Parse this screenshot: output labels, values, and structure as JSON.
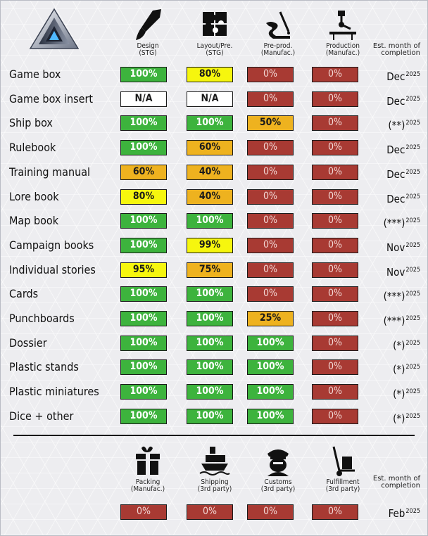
{
  "header": {
    "columns": [
      {
        "label": "Design\n(STG)",
        "icon": "paintbrush-icon"
      },
      {
        "label": "Layout/Pre.\n(STG)",
        "icon": "puzzle-icon"
      },
      {
        "label": "Pre-prod.\n(Manufac.)",
        "icon": "hand-tool-icon"
      },
      {
        "label": "Production\n(Manufac.)",
        "icon": "robot-arm-icon"
      }
    ],
    "est_label": "Est. month of\ncompletion"
  },
  "rows": [
    {
      "name": "Game box",
      "cells": [
        {
          "v": "100%",
          "s": "green"
        },
        {
          "v": "80%",
          "s": "yellow"
        },
        {
          "v": "0%",
          "s": "red"
        },
        {
          "v": "0%",
          "s": "red"
        }
      ],
      "month": "Dec",
      "year": "2025"
    },
    {
      "name": "Game box insert",
      "cells": [
        {
          "v": "N/A",
          "s": "white"
        },
        {
          "v": "N/A",
          "s": "white"
        },
        {
          "v": "0%",
          "s": "red"
        },
        {
          "v": "0%",
          "s": "red"
        }
      ],
      "month": "Dec",
      "year": "2025"
    },
    {
      "name": "Ship box",
      "cells": [
        {
          "v": "100%",
          "s": "green"
        },
        {
          "v": "100%",
          "s": "green"
        },
        {
          "v": "50%",
          "s": "orange"
        },
        {
          "v": "0%",
          "s": "red"
        }
      ],
      "month": "(**)",
      "year": "2025"
    },
    {
      "name": "Rulebook",
      "cells": [
        {
          "v": "100%",
          "s": "green"
        },
        {
          "v": "60%",
          "s": "orange"
        },
        {
          "v": "0%",
          "s": "red"
        },
        {
          "v": "0%",
          "s": "red"
        }
      ],
      "month": "Dec",
      "year": "2025"
    },
    {
      "name": "Training manual",
      "cells": [
        {
          "v": "60%",
          "s": "orange"
        },
        {
          "v": "40%",
          "s": "orange"
        },
        {
          "v": "0%",
          "s": "red"
        },
        {
          "v": "0%",
          "s": "red"
        }
      ],
      "month": "Dec",
      "year": "2025"
    },
    {
      "name": "Lore book",
      "cells": [
        {
          "v": "80%",
          "s": "yellow"
        },
        {
          "v": "40%",
          "s": "orange"
        },
        {
          "v": "0%",
          "s": "red"
        },
        {
          "v": "0%",
          "s": "red"
        }
      ],
      "month": "Dec",
      "year": "2025"
    },
    {
      "name": "Map book",
      "cells": [
        {
          "v": "100%",
          "s": "green"
        },
        {
          "v": "100%",
          "s": "green"
        },
        {
          "v": "0%",
          "s": "red"
        },
        {
          "v": "0%",
          "s": "red"
        }
      ],
      "month": "(***)",
      "year": "2025"
    },
    {
      "name": "Campaign books",
      "cells": [
        {
          "v": "100%",
          "s": "green"
        },
        {
          "v": "99%",
          "s": "yellow"
        },
        {
          "v": "0%",
          "s": "red"
        },
        {
          "v": "0%",
          "s": "red"
        }
      ],
      "month": "Nov",
      "year": "2025"
    },
    {
      "name": "Individual stories",
      "cells": [
        {
          "v": "95%",
          "s": "yellow"
        },
        {
          "v": "75%",
          "s": "orange"
        },
        {
          "v": "0%",
          "s": "red"
        },
        {
          "v": "0%",
          "s": "red"
        }
      ],
      "month": "Nov",
      "year": "2025"
    },
    {
      "name": "Cards",
      "cells": [
        {
          "v": "100%",
          "s": "green"
        },
        {
          "v": "100%",
          "s": "green"
        },
        {
          "v": "0%",
          "s": "red"
        },
        {
          "v": "0%",
          "s": "red"
        }
      ],
      "month": "(***)",
      "year": "2025"
    },
    {
      "name": "Punchboards",
      "cells": [
        {
          "v": "100%",
          "s": "green"
        },
        {
          "v": "100%",
          "s": "green"
        },
        {
          "v": "25%",
          "s": "orange"
        },
        {
          "v": "0%",
          "s": "red"
        }
      ],
      "month": "(***)",
      "year": "2025"
    },
    {
      "name": "Dossier",
      "cells": [
        {
          "v": "100%",
          "s": "green"
        },
        {
          "v": "100%",
          "s": "green"
        },
        {
          "v": "100%",
          "s": "green"
        },
        {
          "v": "0%",
          "s": "red"
        }
      ],
      "month": "(*)",
      "year": "2025"
    },
    {
      "name": "Plastic stands",
      "cells": [
        {
          "v": "100%",
          "s": "green"
        },
        {
          "v": "100%",
          "s": "green"
        },
        {
          "v": "100%",
          "s": "green"
        },
        {
          "v": "0%",
          "s": "red"
        }
      ],
      "month": "(*)",
      "year": "2025"
    },
    {
      "name": "Plastic miniatures",
      "cells": [
        {
          "v": "100%",
          "s": "green"
        },
        {
          "v": "100%",
          "s": "green"
        },
        {
          "v": "100%",
          "s": "green"
        },
        {
          "v": "0%",
          "s": "red"
        }
      ],
      "month": "(*)",
      "year": "2025"
    },
    {
      "name": "Dice + other",
      "cells": [
        {
          "v": "100%",
          "s": "green"
        },
        {
          "v": "100%",
          "s": "green"
        },
        {
          "v": "100%",
          "s": "green"
        },
        {
          "v": "0%",
          "s": "red"
        }
      ],
      "month": "(*)",
      "year": "2025"
    }
  ],
  "footer": {
    "columns": [
      {
        "label": "Packing\n(Manufac.)",
        "icon": "gift-box-icon"
      },
      {
        "label": "Shipping\n(3rd party)",
        "icon": "cargo-ship-icon"
      },
      {
        "label": "Customs\n(3rd party)",
        "icon": "customs-officer-icon"
      },
      {
        "label": "Fulfillment\n(3rd party)",
        "icon": "hand-truck-icon"
      }
    ],
    "est_label": "Est. month of\ncompletion",
    "cells": [
      {
        "v": "0%",
        "s": "red"
      },
      {
        "v": "0%",
        "s": "red"
      },
      {
        "v": "0%",
        "s": "red"
      },
      {
        "v": "0%",
        "s": "red"
      }
    ],
    "month": "Feb",
    "year": "2025"
  },
  "colors": {
    "green": "#3db33d",
    "yellow": "#f6f60e",
    "orange": "#eeb21f",
    "red": "#a83a33",
    "white": "#ffffff"
  }
}
